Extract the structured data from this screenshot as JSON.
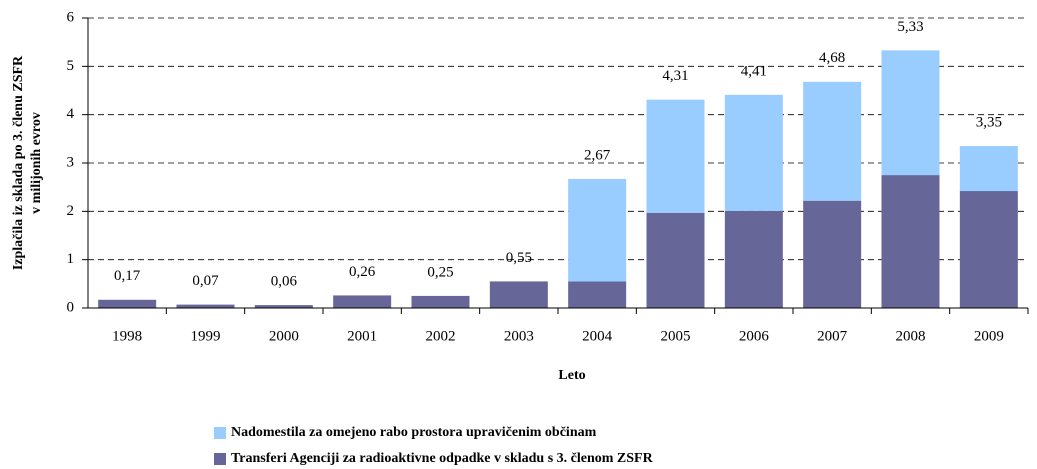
{
  "chart_data": {
    "type": "stacked_bar",
    "xlabel": "Leto",
    "ylabel": [
      "Izplačila iz sklada po 3. členu ZSFR",
      "v milijonih evrov"
    ],
    "categories": [
      "1998",
      "1999",
      "2000",
      "2001",
      "2002",
      "2003",
      "2004",
      "2005",
      "2006",
      "2007",
      "2008",
      "2009"
    ],
    "series": [
      {
        "name": "Transferi Agenciji za radioaktivne odpadke v skladu s 3. členom ZSFR",
        "color": "#666699",
        "values": [
          0.17,
          0.07,
          0.06,
          0.26,
          0.25,
          0.55,
          0.55,
          1.97,
          2.01,
          2.22,
          2.75,
          2.42
        ]
      },
      {
        "name": "Nadomestila za omejeno rabo prostora upravičenim občinam",
        "color": "#99ccff",
        "values": [
          0,
          0,
          0,
          0,
          0,
          0,
          2.12,
          2.34,
          2.4,
          2.46,
          2.58,
          0.93
        ]
      }
    ],
    "totals": {
      "values": [
        0.17,
        0.07,
        0.06,
        0.26,
        0.25,
        0.55,
        2.67,
        4.31,
        4.41,
        4.68,
        5.33,
        3.35
      ],
      "value_labels": [
        "0,17",
        "0,07",
        "0,06",
        "0,26",
        "0,25",
        "0,55",
        "2,67",
        "4,31",
        "4,41",
        "4,68",
        "5,33",
        "3,35"
      ]
    },
    "ylim": [
      0,
      6
    ],
    "yticks": [
      0,
      1,
      2,
      3,
      4,
      5,
      6
    ],
    "grid": true,
    "legend": "bottom"
  }
}
